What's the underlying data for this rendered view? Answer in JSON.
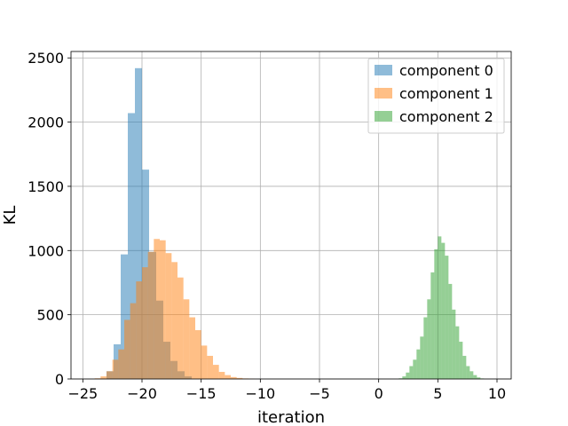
{
  "chart_data": {
    "type": "bar",
    "histogram": true,
    "xlabel": "iteration",
    "ylabel": "KL",
    "xlim": [
      -26,
      11.2
    ],
    "ylim": [
      0,
      2550
    ],
    "xticks": [
      -25,
      -20,
      -15,
      -10,
      -5,
      0,
      5,
      10
    ],
    "yticks": [
      0,
      500,
      1000,
      1500,
      2000,
      2500
    ],
    "xtick_labels": [
      "−25",
      "−20",
      "−15",
      "−10",
      "−5",
      "0",
      "5",
      "10"
    ],
    "ytick_labels": [
      "0",
      "500",
      "1000",
      "1500",
      "2000",
      "2500"
    ],
    "grid": true,
    "legend_position": "top-right",
    "series": [
      {
        "name": "component 0",
        "color": "#1f77b4",
        "opacity": 0.5,
        "bins": [
          {
            "x0": -23.0,
            "x1": -22.4,
            "value": 60
          },
          {
            "x0": -22.4,
            "x1": -21.8,
            "value": 270
          },
          {
            "x0": -21.8,
            "x1": -21.2,
            "value": 970
          },
          {
            "x0": -21.2,
            "x1": -20.6,
            "value": 2070
          },
          {
            "x0": -20.6,
            "x1": -20.0,
            "value": 2420
          },
          {
            "x0": -20.0,
            "x1": -19.4,
            "value": 1630
          },
          {
            "x0": -19.4,
            "x1": -18.8,
            "value": 990
          },
          {
            "x0": -18.8,
            "x1": -18.2,
            "value": 610
          },
          {
            "x0": -18.2,
            "x1": -17.6,
            "value": 290
          },
          {
            "x0": -17.6,
            "x1": -17.0,
            "value": 140
          },
          {
            "x0": -17.0,
            "x1": -16.4,
            "value": 60
          },
          {
            "x0": -16.4,
            "x1": -15.8,
            "value": 20
          }
        ]
      },
      {
        "name": "component 1",
        "color": "#ff7f0e",
        "opacity": 0.5,
        "bins": [
          {
            "x0": -24.0,
            "x1": -23.5,
            "value": 5
          },
          {
            "x0": -23.5,
            "x1": -23.0,
            "value": 20
          },
          {
            "x0": -23.0,
            "x1": -22.5,
            "value": 60
          },
          {
            "x0": -22.5,
            "x1": -22.0,
            "value": 150
          },
          {
            "x0": -22.0,
            "x1": -21.5,
            "value": 230
          },
          {
            "x0": -21.5,
            "x1": -21.0,
            "value": 460
          },
          {
            "x0": -21.0,
            "x1": -20.5,
            "value": 590
          },
          {
            "x0": -20.5,
            "x1": -20.0,
            "value": 760
          },
          {
            "x0": -20.0,
            "x1": -19.5,
            "value": 870
          },
          {
            "x0": -19.5,
            "x1": -19.0,
            "value": 990
          },
          {
            "x0": -19.0,
            "x1": -18.5,
            "value": 1090
          },
          {
            "x0": -18.5,
            "x1": -18.0,
            "value": 1080
          },
          {
            "x0": -18.0,
            "x1": -17.5,
            "value": 980
          },
          {
            "x0": -17.5,
            "x1": -17.0,
            "value": 910
          },
          {
            "x0": -17.0,
            "x1": -16.5,
            "value": 790
          },
          {
            "x0": -16.5,
            "x1": -16.0,
            "value": 620
          },
          {
            "x0": -16.0,
            "x1": -15.5,
            "value": 480
          },
          {
            "x0": -15.5,
            "x1": -15.0,
            "value": 380
          },
          {
            "x0": -15.0,
            "x1": -14.5,
            "value": 260
          },
          {
            "x0": -14.5,
            "x1": -14.0,
            "value": 180
          },
          {
            "x0": -14.0,
            "x1": -13.5,
            "value": 110
          },
          {
            "x0": -13.5,
            "x1": -13.0,
            "value": 55
          },
          {
            "x0": -13.0,
            "x1": -12.5,
            "value": 30
          },
          {
            "x0": -12.5,
            "x1": -12.0,
            "value": 15
          },
          {
            "x0": -12.0,
            "x1": -11.5,
            "value": 8
          },
          {
            "x0": -11.5,
            "x1": -11.0,
            "value": 4
          },
          {
            "x0": -11.0,
            "x1": -10.5,
            "value": 2
          }
        ]
      },
      {
        "name": "component 2",
        "color": "#2ca02c",
        "opacity": 0.5,
        "bins": [
          {
            "x0": 1.7,
            "x1": 2.0,
            "value": 5
          },
          {
            "x0": 2.0,
            "x1": 2.3,
            "value": 20
          },
          {
            "x0": 2.3,
            "x1": 2.6,
            "value": 50
          },
          {
            "x0": 2.6,
            "x1": 2.9,
            "value": 100
          },
          {
            "x0": 2.9,
            "x1": 3.2,
            "value": 150
          },
          {
            "x0": 3.2,
            "x1": 3.5,
            "value": 230
          },
          {
            "x0": 3.5,
            "x1": 3.8,
            "value": 330
          },
          {
            "x0": 3.8,
            "x1": 4.1,
            "value": 480
          },
          {
            "x0": 4.1,
            "x1": 4.4,
            "value": 620
          },
          {
            "x0": 4.4,
            "x1": 4.7,
            "value": 830
          },
          {
            "x0": 4.7,
            "x1": 5.0,
            "value": 1010
          },
          {
            "x0": 5.0,
            "x1": 5.3,
            "value": 1110
          },
          {
            "x0": 5.3,
            "x1": 5.6,
            "value": 1060
          },
          {
            "x0": 5.6,
            "x1": 5.9,
            "value": 960
          },
          {
            "x0": 5.9,
            "x1": 6.2,
            "value": 740
          },
          {
            "x0": 6.2,
            "x1": 6.5,
            "value": 540
          },
          {
            "x0": 6.5,
            "x1": 6.8,
            "value": 410
          },
          {
            "x0": 6.8,
            "x1": 7.1,
            "value": 290
          },
          {
            "x0": 7.1,
            "x1": 7.4,
            "value": 180
          },
          {
            "x0": 7.4,
            "x1": 7.7,
            "value": 100
          },
          {
            "x0": 7.7,
            "x1": 8.0,
            "value": 60
          },
          {
            "x0": 8.0,
            "x1": 8.3,
            "value": 30
          },
          {
            "x0": 8.3,
            "x1": 8.6,
            "value": 12
          },
          {
            "x0": 8.6,
            "x1": 8.9,
            "value": 4
          }
        ]
      }
    ]
  }
}
